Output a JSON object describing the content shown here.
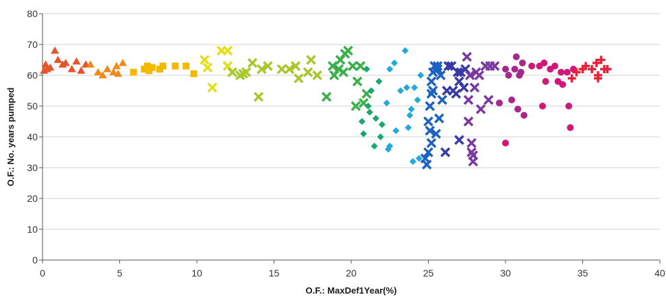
{
  "chart_data": {
    "type": "scatter",
    "title": "",
    "xlabel": "O.F.: MaxDef1Year(%)",
    "ylabel": "O.F.: No. years pumped",
    "xlim": [
      0,
      40
    ],
    "ylim": [
      0,
      80
    ],
    "x_ticks": [
      "0",
      "5",
      "10",
      "15",
      "20",
      "25",
      "30",
      "35",
      "40"
    ],
    "y_ticks": [
      "0",
      "10",
      "20",
      "30",
      "40",
      "50",
      "60",
      "70",
      "80"
    ],
    "grid": "horizontal",
    "legend": "none",
    "series": [
      {
        "marker": "triangle",
        "color": "#e8542a",
        "points": [
          [
            0.1,
            61.5
          ],
          [
            0.2,
            63.5
          ],
          [
            0.5,
            62.5
          ],
          [
            0.8,
            68
          ],
          [
            1.0,
            65
          ],
          [
            1.3,
            63.5
          ],
          [
            1.5,
            64
          ],
          [
            1.9,
            62
          ],
          [
            2.2,
            64.5
          ],
          [
            2.5,
            61.5
          ],
          [
            2.8,
            63.5
          ],
          [
            0.3,
            62
          ]
        ]
      },
      {
        "marker": "triangle",
        "color": "#f08a1c",
        "points": [
          [
            3.6,
            61
          ],
          [
            3.9,
            60
          ],
          [
            4.2,
            62
          ],
          [
            4.6,
            61
          ],
          [
            4.8,
            63
          ],
          [
            5.2,
            64
          ],
          [
            4.9,
            60.5
          ],
          [
            3.1,
            63.5
          ]
        ]
      },
      {
        "marker": "square",
        "color": "#f5b800",
        "points": [
          [
            5.9,
            61
          ],
          [
            6.6,
            62
          ],
          [
            6.9,
            61.5
          ],
          [
            7.1,
            62.5
          ],
          [
            7.6,
            62
          ],
          [
            7.8,
            63
          ],
          [
            8.6,
            63
          ],
          [
            9.3,
            63
          ],
          [
            9.8,
            60.5
          ],
          [
            6.8,
            63
          ]
        ]
      },
      {
        "marker": "x",
        "color": "#e3df1a",
        "points": [
          [
            10.5,
            65
          ],
          [
            10.7,
            62.5
          ],
          [
            11.0,
            56
          ],
          [
            11.6,
            68
          ],
          [
            12.0,
            68
          ],
          [
            12.0,
            63
          ]
        ]
      },
      {
        "marker": "x",
        "color": "#a8c82e",
        "points": [
          [
            12.3,
            61
          ],
          [
            12.8,
            60
          ],
          [
            13.2,
            61
          ],
          [
            13.6,
            64
          ],
          [
            14.0,
            53
          ],
          [
            14.2,
            62
          ],
          [
            14.6,
            63
          ],
          [
            15.5,
            62
          ],
          [
            16.0,
            62
          ],
          [
            16.4,
            63
          ],
          [
            16.6,
            59
          ],
          [
            17.2,
            61
          ],
          [
            17.4,
            65
          ],
          [
            17.8,
            60
          ],
          [
            13.0,
            60.5
          ]
        ]
      },
      {
        "marker": "x",
        "color": "#3bb04a",
        "points": [
          [
            18.4,
            53
          ],
          [
            18.8,
            63
          ],
          [
            18.9,
            60
          ],
          [
            19.2,
            62
          ],
          [
            19.3,
            65
          ],
          [
            19.6,
            67
          ],
          [
            19.8,
            68
          ],
          [
            20.1,
            63
          ],
          [
            20.3,
            50
          ],
          [
            20.4,
            58
          ],
          [
            20.6,
            63
          ],
          [
            20.8,
            51
          ],
          [
            21.0,
            54
          ],
          [
            19.5,
            61
          ]
        ]
      },
      {
        "marker": "diamond",
        "color": "#18a86a",
        "points": [
          [
            20.7,
            45
          ],
          [
            20.8,
            41
          ],
          [
            21.1,
            50
          ],
          [
            21.2,
            48
          ],
          [
            21.3,
            55
          ],
          [
            21.5,
            37
          ],
          [
            21.6,
            46
          ],
          [
            21.8,
            58
          ],
          [
            21.9,
            40
          ],
          [
            22.0,
            44
          ],
          [
            21.0,
            62
          ]
        ]
      },
      {
        "marker": "diamond",
        "color": "#22a9d9",
        "points": [
          [
            22.5,
            37
          ],
          [
            22.4,
            36
          ],
          [
            22.5,
            62
          ],
          [
            22.8,
            64
          ],
          [
            22.9,
            42
          ],
          [
            23.2,
            55
          ],
          [
            23.5,
            68
          ],
          [
            23.6,
            56
          ],
          [
            23.7,
            43
          ],
          [
            23.8,
            47
          ],
          [
            24.0,
            32
          ],
          [
            24.1,
            56
          ],
          [
            24.3,
            52
          ],
          [
            24.5,
            60
          ],
          [
            24.4,
            33
          ],
          [
            23.9,
            49
          ],
          [
            22.3,
            51
          ]
        ]
      },
      {
        "marker": "x",
        "color": "#1e62c0",
        "points": [
          [
            24.8,
            33
          ],
          [
            24.9,
            31
          ],
          [
            25.0,
            35
          ],
          [
            25.1,
            42
          ],
          [
            25.0,
            45
          ],
          [
            25.1,
            50
          ],
          [
            25.2,
            54
          ],
          [
            25.2,
            58
          ],
          [
            25.3,
            61
          ],
          [
            25.4,
            63
          ],
          [
            25.6,
            62
          ],
          [
            25.8,
            60
          ],
          [
            25.9,
            52
          ],
          [
            25.7,
            46
          ],
          [
            25.5,
            41
          ],
          [
            25.3,
            55
          ],
          [
            25.6,
            63
          ],
          [
            25.2,
            38
          ]
        ]
      },
      {
        "marker": "x",
        "color": "#3a3aa6",
        "points": [
          [
            26.1,
            35
          ],
          [
            26.2,
            55
          ],
          [
            26.3,
            63
          ],
          [
            26.5,
            63
          ],
          [
            26.8,
            54
          ],
          [
            27.0,
            58
          ],
          [
            27.1,
            61
          ],
          [
            27.3,
            56
          ],
          [
            27.4,
            62
          ],
          [
            27.0,
            39
          ],
          [
            26.6,
            55
          ],
          [
            26.9,
            61
          ]
        ]
      },
      {
        "marker": "x",
        "color": "#7a3a9e",
        "points": [
          [
            27.5,
            66
          ],
          [
            27.6,
            45
          ],
          [
            27.7,
            60
          ],
          [
            27.8,
            38
          ],
          [
            27.8,
            35
          ],
          [
            27.9,
            32
          ],
          [
            27.9,
            34
          ],
          [
            28.0,
            56
          ],
          [
            28.1,
            61
          ],
          [
            28.3,
            60
          ],
          [
            28.4,
            49
          ],
          [
            28.7,
            63
          ],
          [
            29.0,
            63
          ],
          [
            28.9,
            52
          ],
          [
            29.3,
            63
          ],
          [
            27.6,
            52
          ]
        ]
      },
      {
        "marker": "circle",
        "color": "#a6288c",
        "points": [
          [
            29.6,
            51
          ],
          [
            30.0,
            62
          ],
          [
            30.2,
            60
          ],
          [
            30.4,
            52
          ],
          [
            30.6,
            62
          ],
          [
            30.7,
            66
          ],
          [
            30.8,
            49
          ],
          [
            30.9,
            60
          ],
          [
            31.0,
            61
          ],
          [
            31.1,
            64
          ],
          [
            31.2,
            47
          ]
        ]
      },
      {
        "marker": "circle",
        "color": "#d1177a",
        "points": [
          [
            30.0,
            38
          ],
          [
            31.7,
            63
          ],
          [
            32.2,
            63
          ],
          [
            32.4,
            50
          ],
          [
            32.5,
            64
          ],
          [
            32.6,
            58
          ],
          [
            32.9,
            62
          ],
          [
            33.2,
            63
          ],
          [
            33.4,
            58
          ],
          [
            33.6,
            61
          ],
          [
            33.7,
            57
          ],
          [
            34.1,
            50
          ],
          [
            34.2,
            43
          ],
          [
            34.0,
            61
          ],
          [
            34.4,
            62
          ]
        ]
      },
      {
        "marker": "plus",
        "color": "#e4233a",
        "points": [
          [
            34.3,
            59
          ],
          [
            34.6,
            61
          ],
          [
            35.0,
            62
          ],
          [
            35.2,
            63
          ],
          [
            35.6,
            62
          ],
          [
            35.9,
            64
          ],
          [
            36.0,
            60
          ],
          [
            36.2,
            65
          ],
          [
            36.4,
            62
          ],
          [
            36.6,
            62
          ],
          [
            36.0,
            59
          ]
        ]
      }
    ]
  }
}
